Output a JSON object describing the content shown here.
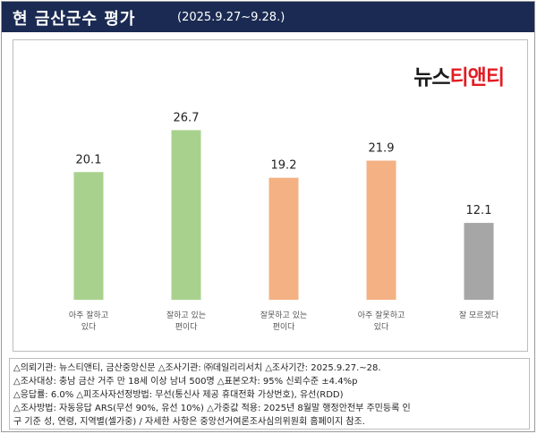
{
  "header": {
    "title": "현 금산군수 평가",
    "period": "(2025.9.27~9.28.)"
  },
  "logo": {
    "part1": "뉴스",
    "part2": "티앤티"
  },
  "chart_data": {
    "type": "bar",
    "title": "",
    "xlabel": "",
    "ylabel": "",
    "ylim": [
      0,
      30
    ],
    "grid": false,
    "categories": [
      [
        "아주 잘하고",
        "있다"
      ],
      [
        "잘하고 있는",
        "편이다"
      ],
      [
        "잘못하고 있는",
        "편이다"
      ],
      [
        "아주 잘못하고",
        "있다"
      ],
      [
        "잘 모르겠다"
      ]
    ],
    "values": [
      20.1,
      26.7,
      19.2,
      21.9,
      12.1
    ],
    "value_labels": [
      "20.1",
      "26.7",
      "19.2",
      "21.9",
      "12.1"
    ],
    "colors": [
      "#a9d18e",
      "#a9d18e",
      "#f4b183",
      "#f4b183",
      "#a6a6a6"
    ]
  },
  "footnote": {
    "lines": [
      "△의뢰기관: 뉴스티앤티, 금산중앙신문 △조사기관: ㈜데일리리서치 △조사기간: 2025.9.27.~28.",
      "△조사대상: 충남 금산 거주 만 18세 이상 남녀 500명 △표본오차: 95% 신뢰수준 ±4.4%p",
      "△응답률: 6.0% △피조사자선정방법: 무선(통신사 제공 휴대전화 가상번호), 유선(RDD)",
      "△조사방법: 자동응답 ARS(무선 90%, 유선 10%) △가중값 적용: 2025년 8월말 행정안전부 주민등록 인",
      "구 기준 성, 연령, 지역별(셀가중) / 자세한 사항은 중앙선거여론조사심의위원회 홈페이지 참조."
    ]
  }
}
